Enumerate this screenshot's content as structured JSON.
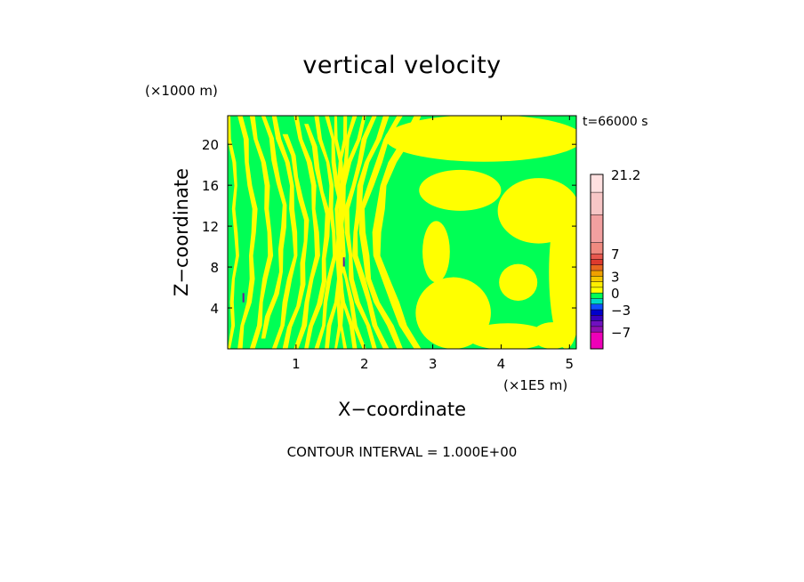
{
  "chart_data": {
    "type": "heatmap",
    "title": "vertical velocity",
    "xlabel": "X−coordinate",
    "ylabel": "Z−coordinate",
    "x_unit": "(×1E5 m)",
    "y_unit": "(×1000 m)",
    "time_label": "t=66000 s",
    "contour_interval_label": "CONTOUR INTERVAL = 1.000E+00",
    "xlim": [
      0,
      5.1
    ],
    "ylim": [
      0,
      22.8
    ],
    "x_ticks": [
      1,
      2,
      3,
      4,
      5
    ],
    "y_ticks": [
      4,
      8,
      12,
      16,
      20
    ],
    "grid": false,
    "fill_colors": {
      "positive": "#ffff00",
      "negative": "#00ff55"
    },
    "colorbar": {
      "min": -10,
      "max": 21.2,
      "tick_labels": [
        {
          "value": 21.2,
          "label": "21.2"
        },
        {
          "value": 7,
          "label": "7"
        },
        {
          "value": 3,
          "label": "3"
        },
        {
          "value": 0,
          "label": "0"
        },
        {
          "value": -3,
          "label": "−3"
        },
        {
          "value": -7,
          "label": "−7"
        }
      ],
      "bands": [
        {
          "from": 18,
          "to": 21.2,
          "color": "#ffe0e0"
        },
        {
          "from": 14,
          "to": 18,
          "color": "#f7c6c6"
        },
        {
          "from": 9,
          "to": 14,
          "color": "#f2a0a0"
        },
        {
          "from": 7,
          "to": 9,
          "color": "#ef8a80"
        },
        {
          "from": 6,
          "to": 7,
          "color": "#e8584e"
        },
        {
          "from": 5,
          "to": 6,
          "color": "#dd3a2e"
        },
        {
          "from": 4,
          "to": 5,
          "color": "#e86820"
        },
        {
          "from": 3,
          "to": 4,
          "color": "#f0a000"
        },
        {
          "from": 2,
          "to": 3,
          "color": "#f5c800"
        },
        {
          "from": 1,
          "to": 2,
          "color": "#ffee00"
        },
        {
          "from": 0,
          "to": 1,
          "color": "#ffff00"
        },
        {
          "from": -1,
          "to": 0,
          "color": "#00ff55"
        },
        {
          "from": -2,
          "to": -1,
          "color": "#00d8c8"
        },
        {
          "from": -3,
          "to": -2,
          "color": "#1050ff"
        },
        {
          "from": -4,
          "to": -3,
          "color": "#0000cc"
        },
        {
          "from": -5,
          "to": -4,
          "color": "#3a00c0"
        },
        {
          "from": -6,
          "to": -5,
          "color": "#7010c0"
        },
        {
          "from": -7,
          "to": -6,
          "color": "#9010b0"
        },
        {
          "from": -10,
          "to": -7,
          "color": "#ee00b8"
        }
      ]
    },
    "positive_regions": [
      {
        "x": 0.02,
        "y0": 0,
        "y1": 22.8,
        "w": 0.05,
        "bend": 0.1
      },
      {
        "x": 0.18,
        "y0": 0,
        "y1": 22.8,
        "w": 0.07,
        "bend": 0.2
      },
      {
        "x": 0.36,
        "y0": 0,
        "y1": 22.8,
        "w": 0.07,
        "bend": 0.25
      },
      {
        "x": 0.52,
        "y0": 1,
        "y1": 22.8,
        "w": 0.07,
        "bend": 0.3
      },
      {
        "x": 0.68,
        "y0": 0,
        "y1": 22.8,
        "w": 0.07,
        "bend": 0.3
      },
      {
        "x": 0.84,
        "y0": 0,
        "y1": 21,
        "w": 0.07,
        "bend": 0.3
      },
      {
        "x": 1.0,
        "y0": 0,
        "y1": 22.8,
        "w": 0.07,
        "bend": 0.3
      },
      {
        "x": 1.15,
        "y0": 0,
        "y1": 22,
        "w": 0.07,
        "bend": 0.3
      },
      {
        "x": 1.3,
        "y0": 0,
        "y1": 22.8,
        "w": 0.06,
        "bend": 0.25
      },
      {
        "x": 1.45,
        "y0": 0,
        "y1": 22.8,
        "w": 0.06,
        "bend": 0.2
      },
      {
        "x": 1.58,
        "y0": 0,
        "y1": 22.8,
        "w": 0.05,
        "bend": 0.1
      },
      {
        "x": 1.72,
        "y0": 0,
        "y1": 22.8,
        "w": 0.05,
        "bend": -0.1
      },
      {
        "x": 1.86,
        "y0": 0,
        "y1": 22.8,
        "w": 0.06,
        "bend": -0.25
      },
      {
        "x": 2.0,
        "y0": 0,
        "y1": 22.8,
        "w": 0.06,
        "bend": -0.35
      },
      {
        "x": 2.15,
        "y0": 0,
        "y1": 22.8,
        "w": 0.07,
        "bend": -0.4
      },
      {
        "x": 2.32,
        "y0": 0,
        "y1": 22.8,
        "w": 0.08,
        "bend": -0.45
      },
      {
        "x": 2.52,
        "y0": 0,
        "y1": 22.8,
        "w": 0.09,
        "bend": -0.55
      },
      {
        "x": 2.78,
        "y0": 0,
        "y1": 22.8,
        "w": 0.12,
        "bend": -0.6
      }
    ],
    "positive_blobs": [
      {
        "cx": 3.75,
        "cy": 20.6,
        "rx": 1.45,
        "ry": 2.3
      },
      {
        "cx": 3.4,
        "cy": 15.5,
        "rx": 0.6,
        "ry": 2.0
      },
      {
        "cx": 4.55,
        "cy": 13.5,
        "rx": 0.6,
        "ry": 3.2
      },
      {
        "cx": 3.3,
        "cy": 3.5,
        "rx": 0.55,
        "ry": 3.5
      },
      {
        "cx": 4.1,
        "cy": 1.2,
        "rx": 0.6,
        "ry": 1.3
      },
      {
        "cx": 4.95,
        "cy": 7.5,
        "rx": 0.25,
        "ry": 7.5
      },
      {
        "cx": 4.75,
        "cy": 1.3,
        "rx": 0.3,
        "ry": 1.3
      },
      {
        "cx": 3.05,
        "cy": 9.5,
        "rx": 0.2,
        "ry": 3.0
      },
      {
        "cx": 4.25,
        "cy": 6.5,
        "rx": 0.28,
        "ry": 1.8
      }
    ],
    "negative_spots": [
      {
        "x": 0.23,
        "y": 5.0,
        "h": 0.9
      },
      {
        "x": 1.7,
        "y": 8.5,
        "h": 0.9
      }
    ]
  }
}
